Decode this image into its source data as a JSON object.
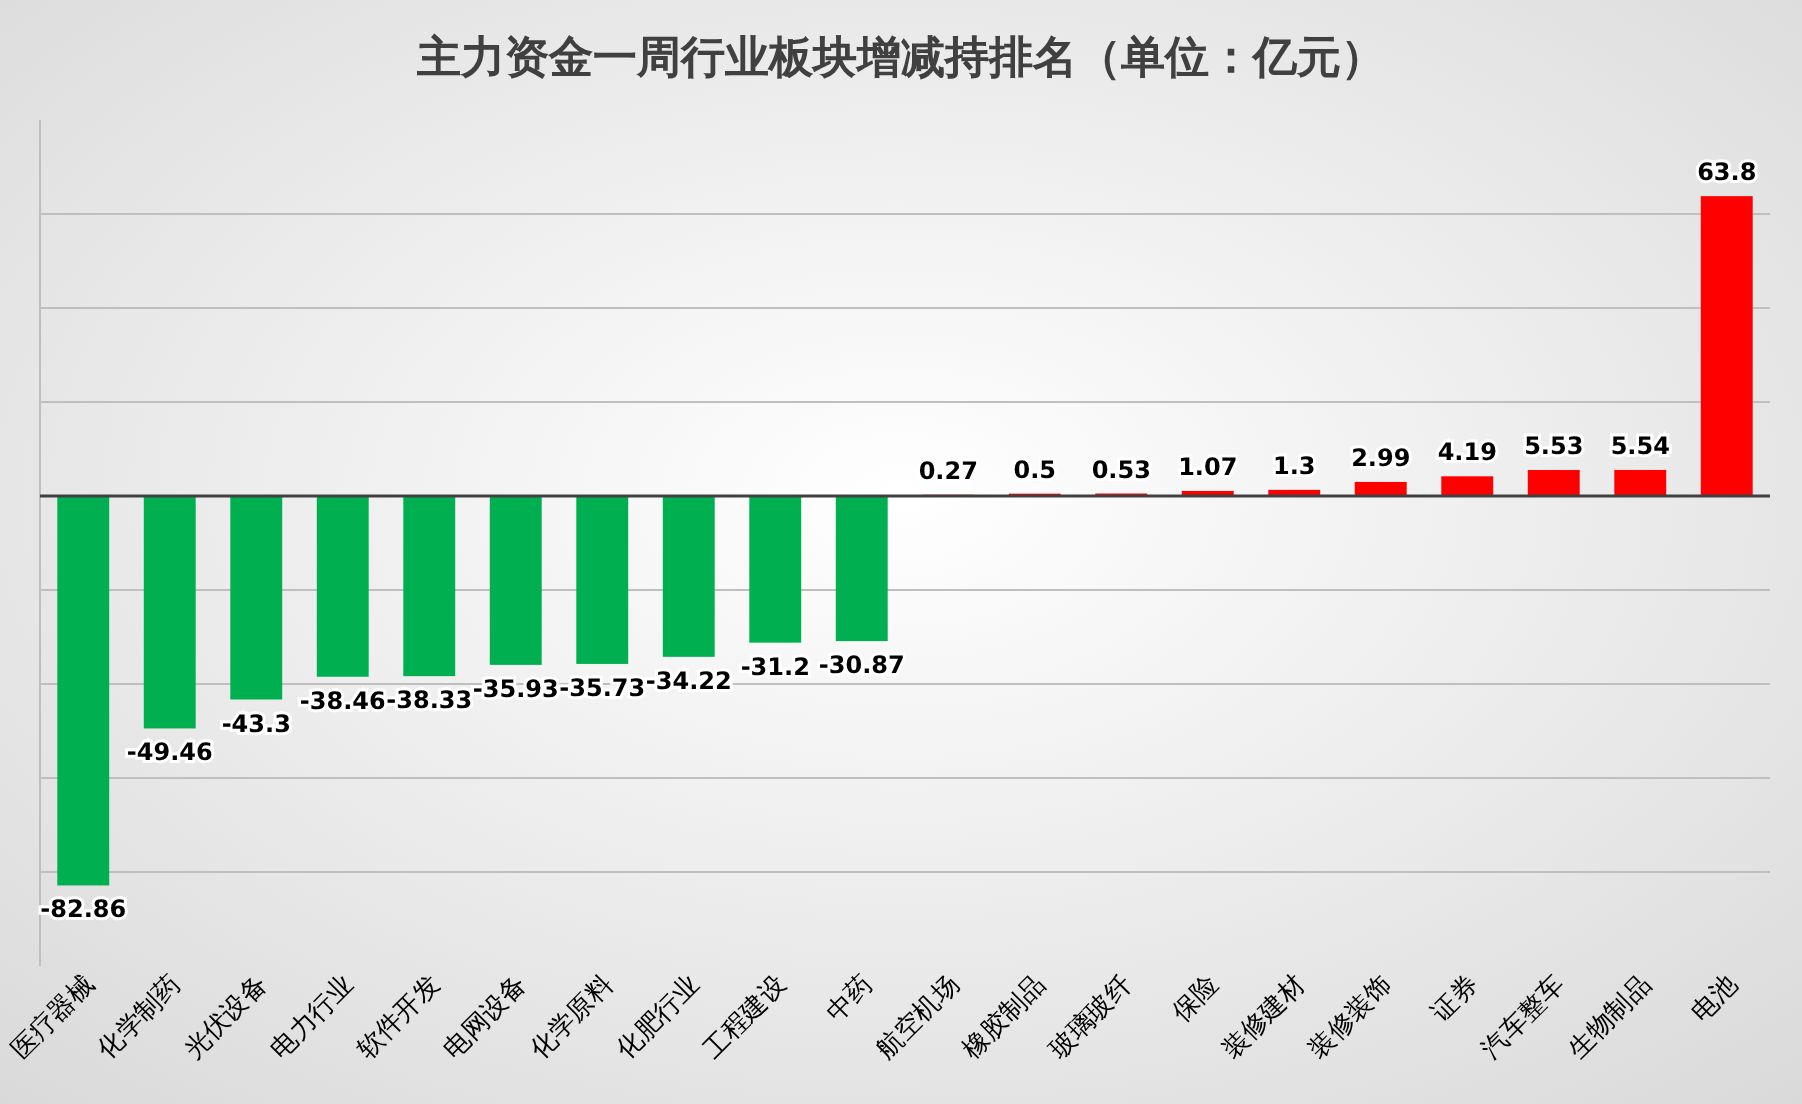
{
  "chart_data": {
    "type": "bar",
    "title": "主力资金一周行业板块增减持排名（单位：亿元）",
    "categories": [
      "医疗器械",
      "化学制药",
      "光伏设备",
      "电力行业",
      "软件开发",
      "电网设备",
      "化学原料",
      "化肥行业",
      "工程建设",
      "中药",
      "航空机场",
      "橡胶制品",
      "玻璃玻纤",
      "保险",
      "装修建材",
      "装修装饰",
      "证券",
      "汽车整车",
      "生物制品",
      "电池"
    ],
    "values": [
      -82.86,
      -49.46,
      -43.3,
      -38.46,
      -38.33,
      -35.93,
      -35.73,
      -34.22,
      -31.2,
      -30.87,
      0.27,
      0.5,
      0.53,
      1.07,
      1.3,
      2.99,
      4.19,
      5.53,
      5.54,
      63.8
    ],
    "colors": [
      "#00b050",
      "#00b050",
      "#00b050",
      "#00b050",
      "#00b050",
      "#00b050",
      "#00b050",
      "#00b050",
      "#00b050",
      "#00b050",
      "#ff0000",
      "#ff0000",
      "#ff0000",
      "#ff0000",
      "#ff0000",
      "#ff0000",
      "#ff0000",
      "#ff0000",
      "#ff0000",
      "#ff0000"
    ],
    "ylim": [
      -100,
      80
    ],
    "yticks": [
      {
        "value": -80,
        "label": null
      },
      {
        "value": -60,
        "label": null
      },
      {
        "value": -40,
        "label": null
      },
      {
        "value": -20,
        "label": null
      },
      {
        "value": 0,
        "label": null
      },
      {
        "value": 20,
        "label": null
      },
      {
        "value": 40,
        "label": null
      },
      {
        "value": 60,
        "label": null
      }
    ],
    "grid": "y",
    "tick_labels": "x",
    "data_labels": true
  }
}
